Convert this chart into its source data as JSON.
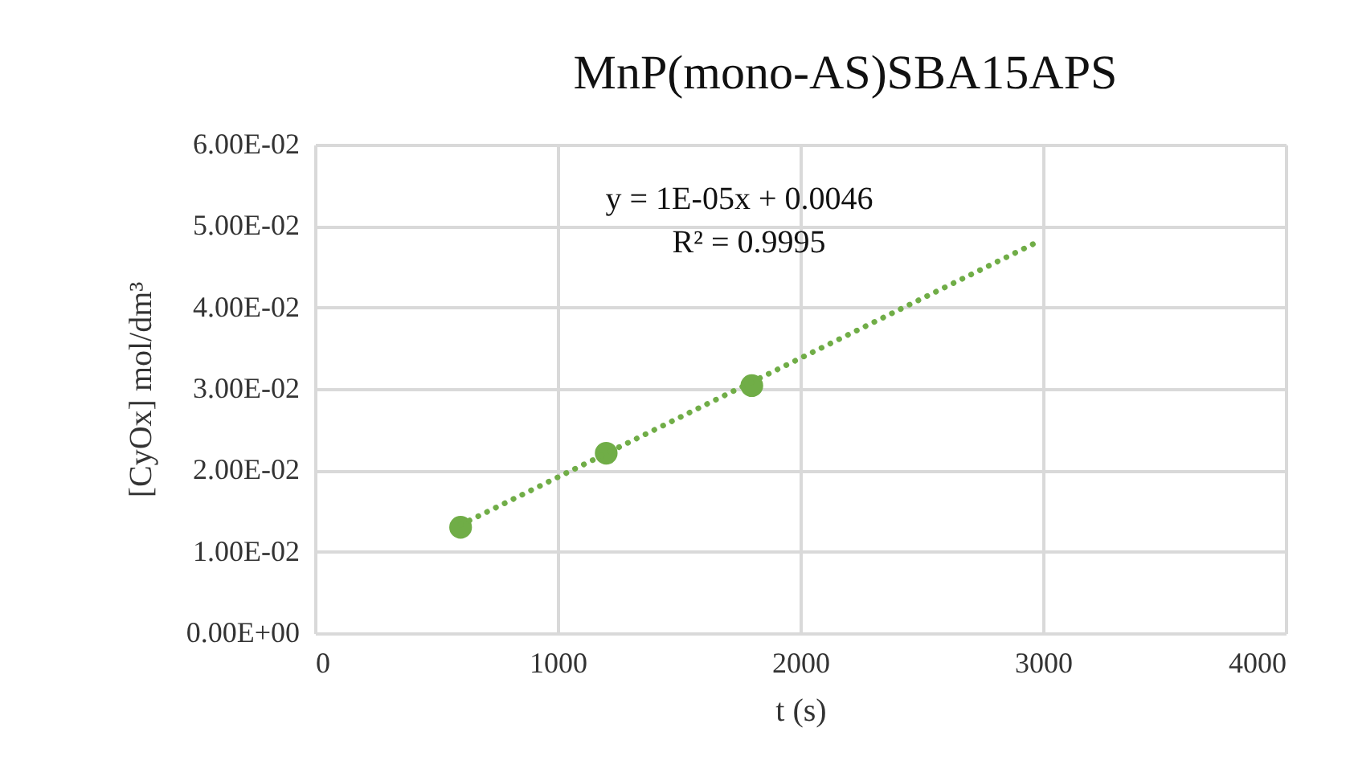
{
  "chart_data": {
    "type": "scatter",
    "title": "MnP(mono-AS)SBA15APS",
    "xlabel": "t (s)",
    "ylabel": "[CyOx]  mol/dm³",
    "x": [
      600,
      1200,
      1800
    ],
    "series": [
      {
        "color": "#70ad47",
        "marker": "circle",
        "values": [
          0.013,
          0.0221,
          0.0304
        ]
      },
      {
        "type": "line",
        "color": "#70ad47",
        "line_style": "dotted",
        "marker": "none",
        "x": [
          600,
          2960
        ],
        "values": [
          0.0133,
          0.0478
        ]
      }
    ],
    "annotations": [
      "y = 1E-05x + 0.0046",
      "R² = 0.9995"
    ],
    "xlim": [
      0,
      4000
    ],
    "xticks": [
      0,
      1000,
      2000,
      3000,
      4000
    ],
    "ylim": [
      0,
      0.06
    ],
    "yticks": [
      {
        "value": 0,
        "label": "0.00E+00"
      },
      {
        "value": 0.01,
        "label": "1.00E-02"
      },
      {
        "value": 0.02,
        "label": "2.00E-02"
      },
      {
        "value": 0.03,
        "label": "3.00E-02"
      },
      {
        "value": 0.04,
        "label": "4.00E-02"
      },
      {
        "value": 0.05,
        "label": "5.00E-02"
      },
      {
        "value": 0.06,
        "label": "6.00E-02"
      }
    ],
    "grid": true
  }
}
